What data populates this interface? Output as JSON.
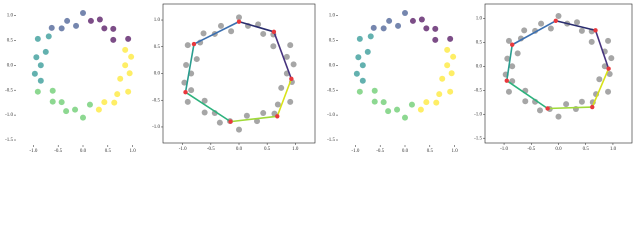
{
  "chart_data": [
    {
      "type": "scatter",
      "frame": false,
      "xlim": [
        -1.35,
        1.35
      ],
      "ylim": [
        -1.6,
        1.25
      ],
      "xticks": [
        {
          "value": -1,
          "label": "-1.0"
        },
        -0.5,
        {
          "value": 0,
          "label": "0.0"
        },
        0.5,
        {
          "value": 1,
          "label": "1.0"
        }
      ],
      "yticks": [
        {
          "value": 1,
          "label": "1.0"
        },
        0.5,
        {
          "value": 0,
          "label": "0.0"
        },
        -0.5,
        {
          "value": -1,
          "label": "-1.0"
        },
        -1.5
      ],
      "series": [
        {
          "style": "points",
          "color": "#440154",
          "x": [
            0.91,
            0.61,
            0.61,
            0.43,
            0.34,
            0.16
          ],
          "y": [
            0.53,
            0.51,
            0.73,
            0.74,
            0.92,
            0.89
          ]
        },
        {
          "style": "points",
          "color": "#3b528b",
          "x": [
            0,
            -0.14,
            -0.32,
            -0.43,
            -0.63
          ],
          "y": [
            1.05,
            0.79,
            0.89,
            0.74,
            0.75
          ]
        },
        {
          "style": "points",
          "color": "#21908d",
          "x": [
            -0.69,
            -0.91,
            -0.75,
            -0.94,
            -0.85,
            -0.97,
            -0.85
          ],
          "y": [
            0.58,
            0.53,
            0.27,
            0.16,
            0,
            -0.17,
            -0.31
          ]
        },
        {
          "style": "points",
          "color": "#5dc863",
          "x": [
            -0.91,
            -0.61,
            -0.61,
            -0.43,
            -0.34,
            -0.16,
            0,
            0.14
          ],
          "y": [
            -0.53,
            -0.51,
            -0.73,
            -0.74,
            -0.92,
            -0.89,
            -1.05,
            -0.79
          ]
        },
        {
          "style": "points",
          "color": "#fde725",
          "x": [
            0.32,
            0.43,
            0.63,
            0.69,
            0.91,
            0.75,
            0.94,
            0.85,
            0.97,
            0.85
          ],
          "y": [
            -0.89,
            -0.74,
            -0.75,
            -0.58,
            -0.53,
            -0.27,
            -0.16,
            0,
            0.17,
            0.31
          ]
        }
      ]
    },
    {
      "type": "scatter",
      "frame": true,
      "xlim": [
        -1.35,
        1.35
      ],
      "ylim": [
        -1.3,
        1.3
      ],
      "xticks": [
        {
          "value": -1,
          "label": "-1.0"
        },
        -0.5,
        {
          "value": 0,
          "label": "0.0"
        },
        0.5,
        {
          "value": 1,
          "label": "1.0"
        }
      ],
      "yticks": [
        {
          "value": 1,
          "label": "1.0"
        },
        0.5,
        {
          "value": 0,
          "label": "0.0"
        },
        -0.5,
        {
          "value": -1,
          "label": "-1.0"
        }
      ],
      "series": [
        {
          "style": "points",
          "color": "#808080",
          "x": [
            0.85,
            0.97,
            0.85,
            0.91,
            0.61,
            0.61,
            0.43,
            0.34,
            0.16,
            0,
            -0.14,
            -0.32,
            -0.43,
            -0.63,
            -0.69,
            -0.91,
            -0.75,
            -0.94,
            -0.85,
            -0.97,
            -0.85,
            -0.91,
            -0.61,
            -0.61,
            -0.43,
            -0.34,
            -0.16,
            0,
            0.14,
            0.32,
            0.43,
            0.63,
            0.69,
            0.91,
            0.75,
            0.94
          ],
          "y": [
            0,
            0.17,
            0.31,
            0.53,
            0.51,
            0.73,
            0.74,
            0.92,
            0.89,
            1.05,
            0.79,
            0.89,
            0.74,
            0.75,
            0.58,
            0.53,
            0.27,
            0.16,
            0,
            -0.17,
            -0.31,
            -0.53,
            -0.51,
            -0.73,
            -0.74,
            -0.92,
            -0.89,
            -1.05,
            -0.79,
            -0.89,
            -0.74,
            -0.75,
            -0.58,
            -0.53,
            -0.27,
            -0.16
          ]
        },
        {
          "style": "polygon",
          "color": "#e8383d",
          "x": [
            -0.8,
            0,
            0.62,
            0.93,
            0.68,
            -0.15,
            -0.95
          ],
          "y": [
            0.55,
            0.97,
            0.78,
            -0.1,
            -0.8,
            -0.9,
            -0.35
          ],
          "segment_colors": [
            "#3b6fb0",
            "#2a2d6e",
            "#46337e",
            "#d8e219",
            "#a0da39",
            "#2db27d",
            "#2a9d8f"
          ]
        }
      ]
    },
    {
      "type": "scatter",
      "frame": false,
      "xlim": [
        -1.35,
        1.35
      ],
      "ylim": [
        -1.6,
        1.25
      ],
      "xticks": [
        {
          "value": -1,
          "label": "-1.0"
        },
        -0.5,
        {
          "value": 0,
          "label": "0.0"
        },
        0.5,
        {
          "value": 1,
          "label": "1.0"
        }
      ],
      "yticks": [
        {
          "value": 1,
          "label": "1.0"
        },
        0.5,
        {
          "value": 0,
          "label": "0.0"
        },
        -0.5,
        {
          "value": -1,
          "label": "-1.0"
        },
        -1.5
      ],
      "series": [
        {
          "style": "points",
          "color": "#440154",
          "x": [
            0.91,
            0.61,
            0.61,
            0.43,
            0.34,
            0.16
          ],
          "y": [
            0.53,
            0.51,
            0.73,
            0.74,
            0.92,
            0.89
          ]
        },
        {
          "style": "points",
          "color": "#3b528b",
          "x": [
            0,
            -0.14,
            -0.32,
            -0.43,
            -0.63
          ],
          "y": [
            1.05,
            0.79,
            0.89,
            0.74,
            0.75
          ]
        },
        {
          "style": "points",
          "color": "#21908d",
          "x": [
            -0.69,
            -0.91,
            -0.75,
            -0.94,
            -0.85,
            -0.97,
            -0.85
          ],
          "y": [
            0.58,
            0.53,
            0.27,
            0.16,
            0,
            -0.17,
            -0.31
          ]
        },
        {
          "style": "points",
          "color": "#5dc863",
          "x": [
            -0.91,
            -0.61,
            -0.61,
            -0.43,
            -0.34,
            -0.16,
            0,
            0.14
          ],
          "y": [
            -0.53,
            -0.51,
            -0.73,
            -0.74,
            -0.92,
            -0.89,
            -1.05,
            -0.79
          ]
        },
        {
          "style": "points",
          "color": "#fde725",
          "x": [
            0.32,
            0.43,
            0.63,
            0.69,
            0.91,
            0.75,
            0.94,
            0.85,
            0.97,
            0.85
          ],
          "y": [
            -0.89,
            -0.74,
            -0.75,
            -0.58,
            -0.53,
            -0.27,
            -0.16,
            0,
            0.17,
            0.31
          ]
        }
      ]
    },
    {
      "type": "scatter",
      "frame": true,
      "xlim": [
        -1.35,
        1.35
      ],
      "ylim": [
        -1.6,
        1.3
      ],
      "xticks": [
        {
          "value": -1,
          "label": "-1.0"
        },
        -0.5,
        {
          "value": 0,
          "label": "0.0"
        },
        0.5,
        {
          "value": 1,
          "label": "1.0"
        }
      ],
      "yticks": [
        {
          "value": 1,
          "label": "1.0"
        },
        0.5,
        {
          "value": 0,
          "label": "0.0"
        },
        -0.5,
        {
          "value": -1,
          "label": "-1.0"
        },
        -1.5
      ],
      "series": [
        {
          "style": "points",
          "color": "#808080",
          "x": [
            0.85,
            0.97,
            0.85,
            0.91,
            0.61,
            0.61,
            0.43,
            0.34,
            0.16,
            0,
            -0.14,
            -0.32,
            -0.43,
            -0.63,
            -0.69,
            -0.91,
            -0.75,
            -0.94,
            -0.85,
            -0.97,
            -0.85,
            -0.91,
            -0.61,
            -0.61,
            -0.43,
            -0.34,
            -0.16,
            0,
            0.14,
            0.32,
            0.43,
            0.63,
            0.69,
            0.91,
            0.75,
            0.94
          ],
          "y": [
            0,
            0.17,
            0.31,
            0.53,
            0.51,
            0.73,
            0.74,
            0.92,
            0.89,
            1.05,
            0.79,
            0.89,
            0.74,
            0.75,
            0.58,
            0.53,
            0.27,
            0.16,
            0,
            -0.17,
            -0.31,
            -0.53,
            -0.51,
            -0.73,
            -0.74,
            -0.92,
            -0.89,
            -1.05,
            -0.79,
            -0.89,
            -0.74,
            -0.75,
            -0.58,
            -0.53,
            -0.27,
            -0.16
          ]
        },
        {
          "style": "polygon",
          "color": "#e8383d",
          "x": [
            -0.85,
            -0.05,
            0.68,
            0.92,
            0.62,
            -0.2,
            -0.95
          ],
          "y": [
            0.45,
            0.95,
            0.75,
            -0.05,
            -0.85,
            -0.88,
            -0.3
          ],
          "segment_colors": [
            "#3b6fb0",
            "#2a2d6e",
            "#46337e",
            "#d8e219",
            "#a0da39",
            "#2db27d",
            "#2a9d8f"
          ]
        }
      ]
    }
  ]
}
